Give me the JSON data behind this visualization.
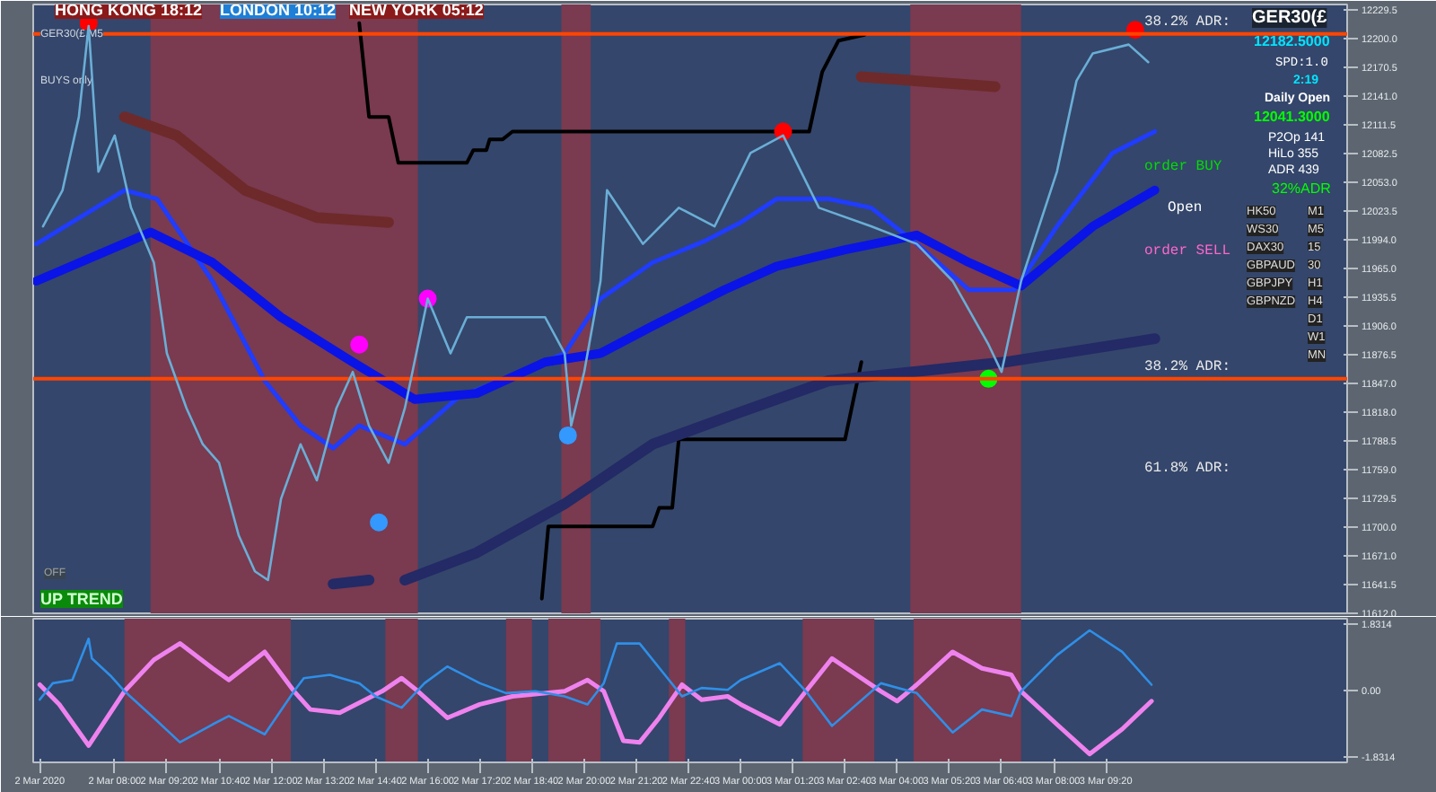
{
  "chart_data": [
    {
      "type": "line",
      "xlim": [
        "2020-03-02T05:55",
        "2020-03-03T15:30"
      ],
      "ylim": [
        11612,
        12235
      ],
      "yticks": [
        {
          "value": 12229.5,
          "label": "12229.5"
        },
        {
          "value": 12200,
          "label": "12200.0"
        },
        {
          "value": 12170.5,
          "label": "12170.5"
        },
        {
          "value": 12141,
          "label": "12141.0"
        },
        {
          "value": 12111.5,
          "label": "12111.5"
        },
        {
          "value": 12082.5,
          "label": "12082.5"
        },
        {
          "value": 12053,
          "label": "12053.0"
        },
        {
          "value": 12023.5,
          "label": "12023.5"
        },
        {
          "value": 11994,
          "label": "11994.0"
        },
        {
          "value": 11965,
          "label": "11965.0"
        },
        {
          "value": 11935.5,
          "label": "11935.5"
        },
        {
          "value": 11906,
          "label": "11906.0"
        },
        {
          "value": 11876.5,
          "label": "11876.5"
        },
        {
          "value": 11847,
          "label": "11847.0"
        },
        {
          "value": 11818,
          "label": "11818.0"
        },
        {
          "value": 11788.5,
          "label": "11788.5"
        },
        {
          "value": 11759,
          "label": "11759.0"
        },
        {
          "value": 11729.5,
          "label": "11729.5"
        },
        {
          "value": 11700,
          "label": "11700.0"
        },
        {
          "value": 11671,
          "label": "11671.0"
        },
        {
          "value": 11641.5,
          "label": "11641.5"
        },
        {
          "value": 11612,
          "label": "11612.0"
        }
      ],
      "tick_labels": "y",
      "series": [
        {
          "color": "#6aaed6",
          "x": [
            "2020-03-02T06:10",
            "2020-03-02T06:40",
            "2020-03-02T07:05",
            "2020-03-02T07:20",
            "2020-03-02T07:35",
            "2020-03-02T08:00",
            "2020-03-02T08:25",
            "2020-03-02T09:00",
            "2020-03-02T09:20",
            "2020-03-02T09:50",
            "2020-03-02T10:15",
            "2020-03-02T10:40",
            "2020-03-02T11:10",
            "2020-03-02T11:35",
            "2020-03-02T11:55",
            "2020-03-02T12:15",
            "2020-03-02T12:45",
            "2020-03-02T13:10",
            "2020-03-02T13:40",
            "2020-03-02T14:05",
            "2020-03-02T14:30",
            "2020-03-02T15:00",
            "2020-03-02T15:25",
            "2020-03-02T16:00",
            "2020-03-02T16:35",
            "2020-03-02T17:00",
            "2020-03-02T17:55",
            "2020-03-02T19:00",
            "2020-03-02T19:30",
            "2020-03-02T19:40",
            "2020-03-02T20:00",
            "2020-03-02T20:25",
            "2020-03-02T20:35",
            "2020-03-02T21:30",
            "2020-03-02T22:25",
            "2020-03-02T23:20",
            "2020-03-03T00:15",
            "2020-03-03T01:05",
            "2020-03-03T02:00",
            "2020-03-03T03:20",
            "2020-03-03T04:30",
            "2020-03-03T05:25",
            "2020-03-03T06:20",
            "2020-03-03T06:40",
            "2020-03-03T07:10",
            "2020-03-03T08:05",
            "2020-03-03T08:35",
            "2020-03-03T09:00",
            "2020-03-03T09:55",
            "2020-03-03T10:25"
          ],
          "values": [
            12008,
            12045,
            12120,
            12213,
            12064,
            12101,
            12027,
            11971,
            11878,
            11822,
            11785,
            11766,
            11692,
            11655,
            11646,
            11729,
            11785,
            11748,
            11822,
            11859,
            11804,
            11766,
            11822,
            11934,
            11878,
            11915,
            11915,
            11915,
            11878,
            11804,
            11859,
            11952,
            12045,
            11990,
            12027,
            12008,
            12083,
            12101,
            12027,
            12008,
            11990,
            11952,
            11887,
            11859,
            11952,
            12064,
            12157,
            12185,
            12194,
            12176
          ]
        },
        {
          "color": "#1f3cff",
          "x": [
            "2020-03-02T06:00",
            "2020-03-02T08:15",
            "2020-03-02T09:05",
            "2020-03-02T10:30",
            "2020-03-02T11:50",
            "2020-03-02T12:45",
            "2020-03-02T13:35",
            "2020-03-02T14:15",
            "2020-03-02T15:25",
            "2020-03-02T16:45",
            "2020-03-02T18:10",
            "2020-03-02T19:30",
            "2020-03-02T20:25",
            "2020-03-02T21:45",
            "2020-03-02T23:05",
            "2020-03-03T00:00",
            "2020-03-03T00:55",
            "2020-03-03T02:15",
            "2020-03-03T03:20",
            "2020-03-03T04:30",
            "2020-03-03T05:50",
            "2020-03-03T07:00",
            "2020-03-03T08:05",
            "2020-03-03T09:30",
            "2020-03-03T10:35"
          ],
          "values": [
            11990,
            12045,
            12036,
            11952,
            11850,
            11804,
            11781,
            11804,
            11785,
            11832,
            11856,
            11878,
            11934,
            11971,
            11993,
            12012,
            12036,
            12036,
            12027,
            11990,
            11943,
            11943,
            12008,
            12083,
            12105
          ]
        },
        {
          "color": "#0a14e6",
          "x": [
            "2020-03-02T06:00",
            "2020-03-02T08:55",
            "2020-03-02T10:30",
            "2020-03-02T12:15",
            "2020-03-02T14:05",
            "2020-03-02T15:40",
            "2020-03-02T17:15",
            "2020-03-02T19:00",
            "2020-03-02T20:25",
            "2020-03-02T21:45",
            "2020-03-02T23:35",
            "2020-03-03T00:55",
            "2020-03-03T02:40",
            "2020-03-03T04:30",
            "2020-03-03T05:50",
            "2020-03-03T07:10",
            "2020-03-03T09:00",
            "2020-03-03T10:35"
          ],
          "values": [
            11952,
            12002,
            11971,
            11915,
            11869,
            11831,
            11837,
            11869,
            11878,
            11906,
            11943,
            11967,
            11984,
            11999,
            11971,
            11947,
            12008,
            12045
          ]
        },
        {
          "color": "#000000",
          "x": [
            "2020-03-02T14:15",
            "2020-03-02T14:30",
            "2020-03-02T15:00",
            "2020-03-02T15:15",
            "2020-03-02T17:00",
            "2020-03-02T17:10",
            "2020-03-02T17:30",
            "2020-03-02T17:35",
            "2020-03-02T17:55",
            "2020-03-02T18:10",
            "2020-03-03T00:55",
            "2020-03-03T01:45",
            "2020-03-03T02:05",
            "2020-03-03T02:30",
            "2020-03-03T03:10"
          ],
          "values": [
            12216,
            12120,
            12120,
            12073,
            12073,
            12086,
            12086,
            12097,
            12097,
            12105,
            12105,
            12105,
            12166,
            12198,
            12204
          ]
        },
        {
          "color": "#000000",
          "x": [
            "2020-03-02T18:55",
            "2020-03-02T19:05",
            "2020-03-02T21:45",
            "2020-03-02T21:55",
            "2020-03-02T22:15",
            "2020-03-02T22:25",
            "2020-03-03T02:40",
            "2020-03-03T03:05"
          ],
          "values": [
            11627,
            11701,
            11701,
            11720,
            11720,
            11790,
            11790,
            11869
          ]
        },
        {
          "color": "#6e2a2a",
          "x": [
            "2020-03-02T08:15",
            "2020-03-02T09:35",
            "2020-03-02T11:20",
            "2020-03-02T13:10",
            "2020-03-02T15:00",
            "2020-03-02T20:00",
            "2020-03-03T03:05",
            "2020-03-03T06:30"
          ],
          "values": [
            12120,
            12101,
            12045,
            12017,
            12012,
            null,
            12161,
            12151
          ]
        },
        {
          "color": "#232a66",
          "x": [
            "2020-03-02T13:35",
            "2020-03-02T14:30",
            "2020-03-02T14:55",
            "2020-03-02T15:25",
            "2020-03-02T17:15",
            "2020-03-02T19:30",
            "2020-03-02T21:45",
            "2020-03-03T00:00",
            "2020-03-03T02:15",
            "2020-03-03T06:45",
            "2020-03-03T10:35"
          ],
          "values": [
            11642,
            11646,
            null,
            11646,
            11674,
            11724,
            11785,
            11818,
            11850,
            11869,
            11893
          ]
        },
        {
          "type": "scatter",
          "marker": "circle",
          "x": [
            "2020-03-02T07:20",
            "2020-03-02T14:15",
            "2020-03-02T14:45",
            "2020-03-02T16:00",
            "2020-03-02T19:35",
            "2020-03-03T01:05",
            "2020-03-03T06:20",
            "2020-03-03T10:05"
          ],
          "values": [
            12216,
            11887,
            11705,
            11934,
            11794,
            12105,
            11852,
            12209
          ],
          "colors": [
            "#ff0000",
            "#ff00ff",
            "#3399ff",
            "#ff00ff",
            "#3399ff",
            "#ff0000",
            "#00ff00",
            "#ff0000"
          ]
        }
      ],
      "bands": [
        {
          "axis": "x",
          "from": "2020-03-02T08:55",
          "to": "2020-03-02T15:45",
          "color": "#7a3a50"
        },
        {
          "axis": "x",
          "from": "2020-03-02T19:25",
          "to": "2020-03-02T20:10",
          "color": "#7a3a50"
        },
        {
          "axis": "x",
          "from": "2020-03-03T04:20",
          "to": "2020-03-03T07:10",
          "color": "#7a3a50"
        }
      ],
      "ref_lines": [
        {
          "axis": "y",
          "value": 12205,
          "label": "38.2% ADR:",
          "color": "#ff4500"
        },
        {
          "axis": "y",
          "value": 11852,
          "label": "38.2% ADR:",
          "color": "#ff4500"
        }
      ],
      "annotations": [
        "GER30(£,M5",
        "HONG KONG 18:12",
        "LONDON 10:12",
        "NEW YORK 05:12",
        "BUYS only",
        "OFF",
        "UP TREND",
        "order BUY",
        "Open",
        "order SELL",
        "61.8% ADR:",
        "GER30(£",
        "12182.5000",
        "SPD:1.0",
        "2:19",
        "Daily Open",
        "12041.3000",
        "P2Op 141",
        "HiLo 355",
        "ADR 439",
        "32%ADR",
        "HK50",
        "M1",
        "WS30",
        "M5",
        "DAX30",
        "15",
        "GBPAUD",
        "30",
        "GBPJPY",
        "H1",
        "GBPNZD",
        "H4",
        "D1",
        "W1",
        "MN"
      ]
    },
    {
      "type": "line",
      "xlim": [
        "2020-03-02T05:55",
        "2020-03-03T15:30"
      ],
      "ylim": [
        -1.97,
        1.97
      ],
      "yticks": [
        {
          "value": 1.8314,
          "label": "1.8314"
        },
        {
          "value": 0,
          "label": "0.00"
        },
        {
          "value": -1.8314,
          "label": "-1.8314"
        }
      ],
      "xticks": [
        {
          "value": "2020-03-02T06:05",
          "label": "2 Mar 2020"
        },
        {
          "value": "2020-03-02T08:00",
          "label": "2 Mar 08:00"
        },
        {
          "value": "2020-03-02T09:20",
          "label": "2 Mar 09:20"
        },
        {
          "value": "2020-03-02T10:40",
          "label": "2 Mar 10:40"
        },
        {
          "value": "2020-03-02T12:00",
          "label": "2 Mar 12:00"
        },
        {
          "value": "2020-03-02T13:20",
          "label": "2 Mar 13:20"
        },
        {
          "value": "2020-03-02T14:40",
          "label": "2 Mar 14:40"
        },
        {
          "value": "2020-03-02T16:00",
          "label": "2 Mar 16:00"
        },
        {
          "value": "2020-03-02T17:20",
          "label": "2 Mar 17:20"
        },
        {
          "value": "2020-03-02T18:40",
          "label": "2 Mar 18:40"
        },
        {
          "value": "2020-03-02T20:00",
          "label": "2 Mar 20:00"
        },
        {
          "value": "2020-03-02T21:20",
          "label": "2 Mar 21:20"
        },
        {
          "value": "2020-03-02T22:40",
          "label": "2 Mar 22:40"
        },
        {
          "value": "2020-03-03T00:00",
          "label": "3 Mar 00:00"
        },
        {
          "value": "2020-03-03T01:20",
          "label": "3 Mar 01:20"
        },
        {
          "value": "2020-03-03T02:40",
          "label": "3 Mar 02:40"
        },
        {
          "value": "2020-03-03T04:00",
          "label": "3 Mar 04:00"
        },
        {
          "value": "2020-03-03T05:20",
          "label": "3 Mar 05:20"
        },
        {
          "value": "2020-03-03T06:40",
          "label": "3 Mar 06:40"
        },
        {
          "value": "2020-03-03T08:00",
          "label": "3 Mar 08:00"
        },
        {
          "value": "2020-03-03T09:20",
          "label": "3 Mar 09:20"
        }
      ],
      "series": [
        {
          "color": "#2f8fe8",
          "x": [
            "2020-03-02T06:05",
            "2020-03-02T06:25",
            "2020-03-02T06:55",
            "2020-03-02T07:20",
            "2020-03-02T07:25",
            "2020-03-02T07:55",
            "2020-03-02T08:15",
            "2020-03-02T09:00",
            "2020-03-02T09:40",
            "2020-03-02T10:30",
            "2020-03-02T10:55",
            "2020-03-02T11:50",
            "2020-03-02T12:35",
            "2020-03-02T12:50",
            "2020-03-02T13:30",
            "2020-03-02T14:15",
            "2020-03-02T14:40",
            "2020-03-02T15:20",
            "2020-03-02T15:55",
            "2020-03-02T16:30",
            "2020-03-02T17:20",
            "2020-03-02T18:00",
            "2020-03-02T18:45",
            "2020-03-02T19:30",
            "2020-03-02T20:05",
            "2020-03-02T20:30",
            "2020-03-02T20:50",
            "2020-03-02T21:25",
            "2020-03-02T22:10",
            "2020-03-02T22:30",
            "2020-03-02T23:00",
            "2020-03-02T23:40",
            "2020-03-03T00:00",
            "2020-03-03T01:00",
            "2020-03-03T01:40",
            "2020-03-03T02:20",
            "2020-03-03T03:35",
            "2020-03-03T04:30",
            "2020-03-03T05:25",
            "2020-03-03T06:10",
            "2020-03-03T06:55",
            "2020-03-03T07:10",
            "2020-03-03T08:05",
            "2020-03-03T08:55",
            "2020-03-03T09:45",
            "2020-03-03T10:30"
          ],
          "values": [
            -0.25,
            0.2,
            0.29,
            1.42,
            0.88,
            0.38,
            -0.02,
            -0.75,
            -1.42,
            -0.93,
            -0.7,
            -1.2,
            -0.02,
            0.34,
            0.43,
            0.2,
            -0.16,
            -0.47,
            0.2,
            0.66,
            0.2,
            -0.07,
            -0.02,
            -0.16,
            -0.38,
            0.2,
            1.29,
            1.29,
            0.29,
            -0.16,
            0.07,
            0.02,
            0.29,
            0.75,
            -0.02,
            -0.97,
            0.2,
            -0.07,
            -1.15,
            -0.52,
            -0.7,
            -0.02,
            0.97,
            1.65,
            1.06,
            0.16
          ]
        },
        {
          "color": "#ee82ee",
          "x": [
            "2020-03-02T06:05",
            "2020-03-02T06:35",
            "2020-03-02T07:20",
            "2020-03-02T08:15",
            "2020-03-02T09:00",
            "2020-03-02T09:40",
            "2020-03-02T10:30",
            "2020-03-02T10:55",
            "2020-03-02T11:50",
            "2020-03-02T12:35",
            "2020-03-02T13:00",
            "2020-03-02T13:45",
            "2020-03-02T14:50",
            "2020-03-02T15:20",
            "2020-03-02T15:45",
            "2020-03-02T16:30",
            "2020-03-02T17:20",
            "2020-03-02T18:10",
            "2020-03-02T19:30",
            "2020-03-02T20:05",
            "2020-03-02T20:30",
            "2020-03-02T21:00",
            "2020-03-02T21:25",
            "2020-03-02T21:55",
            "2020-03-02T22:30",
            "2020-03-02T23:00",
            "2020-03-02T23:40",
            "2020-03-03T00:00",
            "2020-03-03T01:00",
            "2020-03-03T01:40",
            "2020-03-03T02:20",
            "2020-03-03T03:35",
            "2020-03-03T04:00",
            "2020-03-03T04:30",
            "2020-03-03T05:25",
            "2020-03-03T06:10",
            "2020-03-03T06:55",
            "2020-03-03T07:10",
            "2020-03-03T08:05",
            "2020-03-03T08:55",
            "2020-03-03T09:45",
            "2020-03-03T10:30"
          ],
          "values": [
            0.16,
            -0.38,
            -1.51,
            -0.02,
            0.84,
            1.29,
            0.61,
            0.29,
            1.06,
            -0.02,
            -0.52,
            -0.61,
            -0.02,
            0.34,
            -0.02,
            -0.75,
            -0.38,
            -0.16,
            -0.02,
            0.29,
            -0.02,
            -1.38,
            -1.42,
            -0.75,
            0.16,
            -0.25,
            -0.16,
            -0.38,
            -0.93,
            -0.02,
            0.88,
            -0.02,
            -0.29,
            0.16,
            1.06,
            0.61,
            0.43,
            -0.02,
            -0.93,
            -1.74,
            -1.06,
            -0.29
          ]
        }
      ],
      "bands": [
        {
          "axis": "x",
          "from": "2020-03-02T08:15",
          "to": "2020-03-02T12:30",
          "color": "#7a3a50"
        },
        {
          "axis": "x",
          "from": "2020-03-02T14:55",
          "to": "2020-03-02T15:45",
          "color": "#7a3a50"
        },
        {
          "axis": "x",
          "from": "2020-03-02T18:00",
          "to": "2020-03-02T18:40",
          "color": "#7a3a50"
        },
        {
          "axis": "x",
          "from": "2020-03-02T19:05",
          "to": "2020-03-02T20:25",
          "color": "#7a3a50"
        },
        {
          "axis": "x",
          "from": "2020-03-02T22:10",
          "to": "2020-03-02T22:35",
          "color": "#7a3a50"
        },
        {
          "axis": "x",
          "from": "2020-03-03T01:35",
          "to": "2020-03-03T03:25",
          "color": "#7a3a50"
        },
        {
          "axis": "x",
          "from": "2020-03-03T04:25",
          "to": "2020-03-03T07:10",
          "color": "#7a3a50"
        }
      ]
    }
  ]
}
